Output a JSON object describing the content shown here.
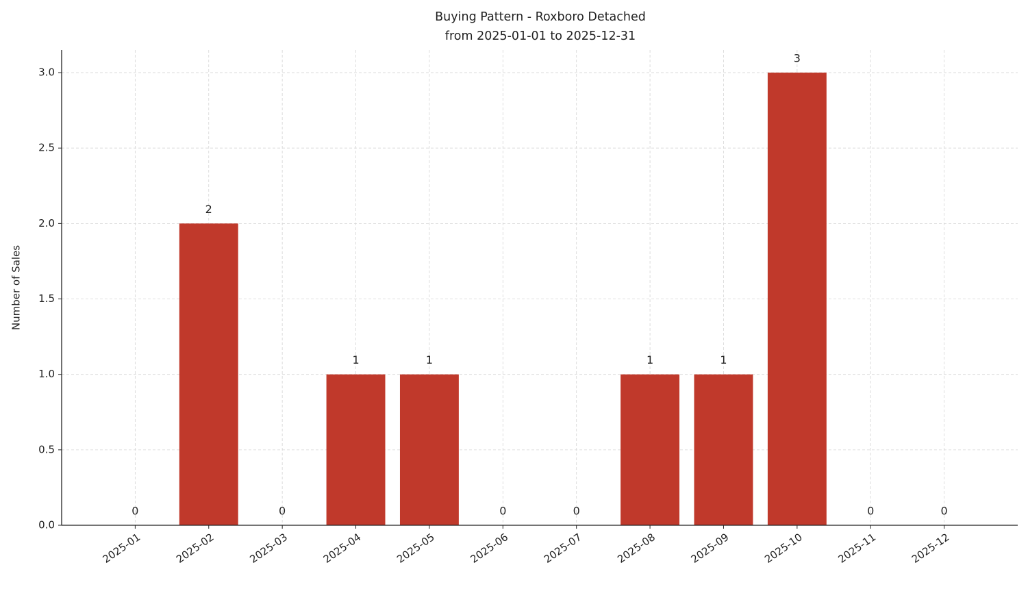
{
  "chart_data": {
    "type": "bar",
    "title": "Buying Pattern - Roxboro Detached",
    "subtitle": "from 2025-01-01 to 2025-12-31",
    "y_label": "Number of Sales",
    "categories": [
      "2025-01",
      "2025-02",
      "2025-03",
      "2025-04",
      "2025-05",
      "2025-06",
      "2025-07",
      "2025-08",
      "2025-09",
      "2025-10",
      "2025-11",
      "2025-12"
    ],
    "values": [
      0,
      2,
      0,
      1,
      1,
      0,
      0,
      1,
      1,
      3,
      0,
      0
    ],
    "color": "#c0392b",
    "ylim": [
      0,
      3.15
    ],
    "yticks": [
      {
        "value": 0,
        "label": "0.0"
      },
      0.5,
      {
        "value": 1,
        "label": "1.0"
      },
      1.5,
      {
        "value": 2,
        "label": "2.0"
      },
      2.5,
      {
        "value": 3,
        "label": "3.0"
      }
    ],
    "grid": true
  }
}
